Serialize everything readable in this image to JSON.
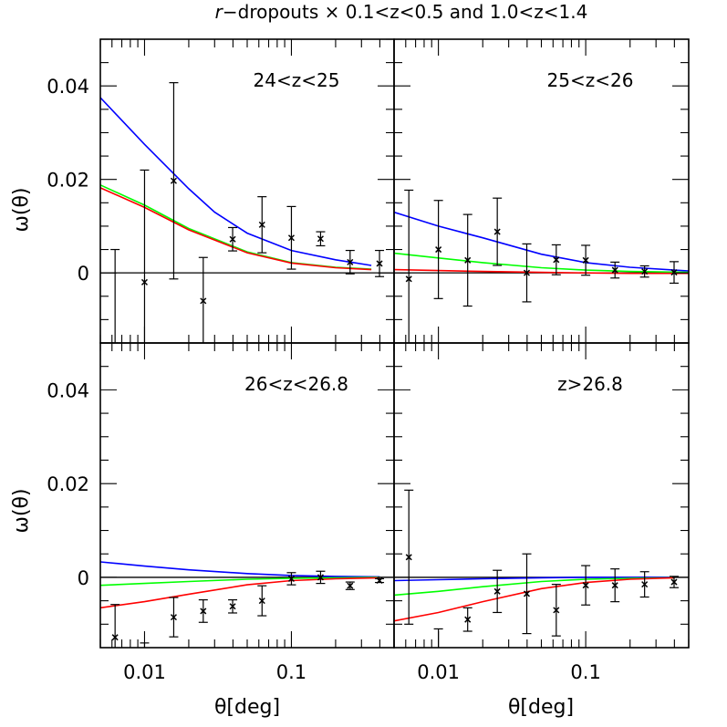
{
  "title": {
    "prefix": "r",
    "rest": "−dropouts × 0.1<z<0.5 and 1.0<z<1.4"
  },
  "axes": {
    "xlabel": "θ[deg]",
    "ylabel": "ω(θ)",
    "x_ticks": [
      "0.01",
      "0.1"
    ],
    "y_ticks": [
      "0",
      "0.02",
      "0.04"
    ]
  },
  "chart_data": [
    {
      "type": "line",
      "panel": "24<z<25",
      "xlim": [
        0.005,
        0.5
      ],
      "ylim": [
        -0.015,
        0.05
      ],
      "xscale": "log",
      "series": [
        {
          "color": "#0000ff",
          "x": [
            0.005,
            0.01,
            0.02,
            0.03,
            0.05,
            0.1,
            0.2,
            0.35
          ],
          "y": [
            0.0375,
            0.0275,
            0.018,
            0.013,
            0.0085,
            0.0048,
            0.0028,
            0.0016
          ]
        },
        {
          "color": "#00ff00",
          "x": [
            0.005,
            0.01,
            0.02,
            0.05,
            0.1,
            0.2,
            0.35
          ],
          "y": [
            0.0188,
            0.0145,
            0.0095,
            0.0045,
            0.0022,
            0.0012,
            0.0008
          ]
        },
        {
          "color": "#ff0000",
          "x": [
            0.005,
            0.01,
            0.02,
            0.05,
            0.1,
            0.2,
            0.35
          ],
          "y": [
            0.0182,
            0.014,
            0.0092,
            0.0043,
            0.0021,
            0.0011,
            0.0007
          ]
        }
      ],
      "points": [
        {
          "x": 0.0063,
          "y": -0.0155,
          "err": 0.0205
        },
        {
          "x": 0.01,
          "y": -0.002,
          "err": 0.024
        },
        {
          "x": 0.0158,
          "y": 0.0197,
          "err": 0.021
        },
        {
          "x": 0.0251,
          "y": -0.006,
          "err": 0.0093
        },
        {
          "x": 0.0398,
          "y": 0.0072,
          "err": 0.0025
        },
        {
          "x": 0.0631,
          "y": 0.0103,
          "err": 0.006
        },
        {
          "x": 0.1,
          "y": 0.0075,
          "err": 0.0067
        },
        {
          "x": 0.158,
          "y": 0.0073,
          "err": 0.0015
        },
        {
          "x": 0.251,
          "y": 0.0023,
          "err": 0.0025
        },
        {
          "x": 0.398,
          "y": 0.002,
          "err": 0.0028
        }
      ]
    },
    {
      "type": "line",
      "panel": "25<z<26",
      "xlim": [
        0.005,
        0.5
      ],
      "ylim": [
        -0.015,
        0.05
      ],
      "xscale": "log",
      "series": [
        {
          "color": "#0000ff",
          "x": [
            0.005,
            0.01,
            0.02,
            0.05,
            0.1,
            0.2,
            0.5
          ],
          "y": [
            0.013,
            0.01,
            0.0075,
            0.004,
            0.0022,
            0.0012,
            0.0004
          ]
        },
        {
          "color": "#00ff00",
          "x": [
            0.005,
            0.01,
            0.02,
            0.05,
            0.1,
            0.2,
            0.5
          ],
          "y": [
            0.0042,
            0.0032,
            0.0022,
            0.0011,
            0.0006,
            0.0003,
            0.0001
          ]
        },
        {
          "color": "#ff0000",
          "x": [
            0.005,
            0.01,
            0.02,
            0.05,
            0.1,
            0.2,
            0.5
          ],
          "y": [
            0.0007,
            0.0005,
            0.0003,
            0.0001,
            0.0,
            -0.0001,
            -0.0001
          ]
        }
      ],
      "points": [
        {
          "x": 0.0063,
          "y": -0.0013,
          "err": 0.019
        },
        {
          "x": 0.01,
          "y": 0.005,
          "err": 0.0105
        },
        {
          "x": 0.0158,
          "y": 0.0027,
          "err": 0.0098
        },
        {
          "x": 0.0251,
          "y": 0.0088,
          "err": 0.0072
        },
        {
          "x": 0.0398,
          "y": 0.0,
          "err": 0.0062
        },
        {
          "x": 0.0631,
          "y": 0.0028,
          "err": 0.0032
        },
        {
          "x": 0.1,
          "y": 0.0027,
          "err": 0.0032
        },
        {
          "x": 0.158,
          "y": 0.0006,
          "err": 0.0017
        },
        {
          "x": 0.251,
          "y": 0.0003,
          "err": 0.0012
        },
        {
          "x": 0.398,
          "y": 0.0001,
          "err": 0.0023
        }
      ]
    },
    {
      "type": "line",
      "panel": "26<z<26.8",
      "xlim": [
        0.005,
        0.5
      ],
      "ylim": [
        -0.015,
        0.05
      ],
      "xscale": "log",
      "series": [
        {
          "color": "#0000ff",
          "x": [
            0.005,
            0.01,
            0.02,
            0.05,
            0.1,
            0.2,
            0.4
          ],
          "y": [
            0.0033,
            0.0024,
            0.0016,
            0.0008,
            0.0004,
            0.0002,
            0.0001
          ]
        },
        {
          "color": "#00ff00",
          "x": [
            0.005,
            0.01,
            0.02,
            0.05,
            0.1,
            0.2,
            0.4
          ],
          "y": [
            -0.0017,
            -0.0013,
            -0.0009,
            -0.0004,
            -0.0002,
            -0.0001,
            0.0
          ]
        },
        {
          "color": "#ff0000",
          "x": [
            0.005,
            0.01,
            0.02,
            0.05,
            0.1,
            0.2,
            0.4
          ],
          "y": [
            -0.0065,
            -0.0052,
            -0.0036,
            -0.0016,
            -0.0007,
            -0.0003,
            -0.0001
          ]
        }
      ],
      "points": [
        {
          "x": 0.0063,
          "y": -0.0128,
          "err": 0.007
        },
        {
          "x": 0.01,
          "y": -0.019,
          "err": 0.005
        },
        {
          "x": 0.0158,
          "y": -0.0085,
          "err": 0.0042
        },
        {
          "x": 0.0251,
          "y": -0.0072,
          "err": 0.0024
        },
        {
          "x": 0.0398,
          "y": -0.0062,
          "err": 0.0014
        },
        {
          "x": 0.0631,
          "y": -0.005,
          "err": 0.0032
        },
        {
          "x": 0.1,
          "y": -0.0003,
          "err": 0.0013
        },
        {
          "x": 0.158,
          "y": 0.0,
          "err": 0.0013
        },
        {
          "x": 0.251,
          "y": -0.0018,
          "err": 0.0008
        },
        {
          "x": 0.398,
          "y": -0.0007,
          "err": 0.0004
        }
      ]
    },
    {
      "type": "line",
      "panel": "z>26.8",
      "xlim": [
        0.005,
        0.5
      ],
      "ylim": [
        -0.015,
        0.05
      ],
      "xscale": "log",
      "series": [
        {
          "color": "#0000ff",
          "x": [
            0.005,
            0.01,
            0.02,
            0.05,
            0.1,
            0.2,
            0.4
          ],
          "y": [
            -0.0007,
            -0.0005,
            -0.0003,
            -0.0001,
            0.0,
            0.0,
            0.0
          ]
        },
        {
          "color": "#00ff00",
          "x": [
            0.005,
            0.01,
            0.02,
            0.05,
            0.1,
            0.2,
            0.4
          ],
          "y": [
            -0.0038,
            -0.003,
            -0.002,
            -0.0009,
            -0.0004,
            -0.0002,
            -0.0001
          ]
        },
        {
          "color": "#ff0000",
          "x": [
            0.005,
            0.01,
            0.02,
            0.05,
            0.1,
            0.2,
            0.4
          ],
          "y": [
            -0.0093,
            -0.0075,
            -0.0052,
            -0.0024,
            -0.0011,
            -0.0004,
            -0.0001
          ]
        }
      ],
      "points": [
        {
          "x": 0.0063,
          "y": 0.0043,
          "err": 0.0143
        },
        {
          "x": 0.01,
          "y": -0.019,
          "err": 0.008
        },
        {
          "x": 0.0158,
          "y": -0.009,
          "err": 0.0025
        },
        {
          "x": 0.0251,
          "y": -0.003,
          "err": 0.0045
        },
        {
          "x": 0.0398,
          "y": -0.0035,
          "err": 0.0085
        },
        {
          "x": 0.0631,
          "y": -0.007,
          "err": 0.0055
        },
        {
          "x": 0.1,
          "y": -0.0017,
          "err": 0.0042
        },
        {
          "x": 0.158,
          "y": -0.0017,
          "err": 0.0035
        },
        {
          "x": 0.251,
          "y": -0.0015,
          "err": 0.0027
        },
        {
          "x": 0.398,
          "y": -0.001,
          "err": 0.0012
        }
      ]
    }
  ]
}
